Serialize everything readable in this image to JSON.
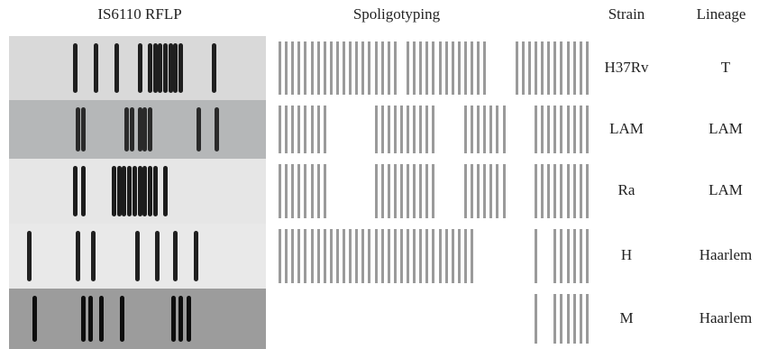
{
  "headers": {
    "rflp": "IS6110 RFLP",
    "spoligo": "Spoligotyping",
    "strain": "Strain",
    "lineage": "Lineage"
  },
  "rows": [
    {
      "strain": "H37Rv",
      "lineage": "T",
      "lane_background": "#d9d9d9",
      "band_color": "#1f1f1f",
      "bands": [
        0.25,
        0.33,
        0.41,
        0.5,
        0.54,
        0.56,
        0.58,
        0.6,
        0.62,
        0.64,
        0.66,
        0.79
      ],
      "spoligo": "1111111111111111111011111111111110000111111111111"
    },
    {
      "strain": "LAM",
      "lineage": "LAM",
      "lane_background": "#b5b7b8",
      "band_color": "#2a2a2a",
      "bands": [
        0.26,
        0.28,
        0.45,
        0.47,
        0.5,
        0.52,
        0.54,
        0.73,
        0.8
      ],
      "spoligo": "1111111100000001111111111000011111110000111111111"
    },
    {
      "strain": "Ra",
      "lineage": "LAM",
      "lane_background": "#e6e6e6",
      "band_color": "#1c1c1c",
      "bands": [
        0.25,
        0.28,
        0.4,
        0.42,
        0.44,
        0.46,
        0.48,
        0.5,
        0.52,
        0.54,
        0.56,
        0.6
      ],
      "spoligo": "1111111100000001111111111000011111110000111111111"
    },
    {
      "strain": "H",
      "lineage": "Haarlem",
      "lane_background": "#e9e9e9",
      "band_color": "#202020",
      "bands": [
        0.07,
        0.26,
        0.32,
        0.49,
        0.57,
        0.64,
        0.72
      ],
      "spoligo": "1111111111111111111111111111111000000000100111111"
    },
    {
      "strain": "M",
      "lineage": "Haarlem",
      "lane_background": "#9c9c9c",
      "band_color": "#0e0e0e",
      "bands": [
        0.09,
        0.28,
        0.31,
        0.35,
        0.43,
        0.63,
        0.66,
        0.69
      ],
      "spoligo": "0000000000000000000000000000000000000000100111111"
    }
  ],
  "colors": {
    "spoligo_spacer": "#9a9a9a"
  }
}
